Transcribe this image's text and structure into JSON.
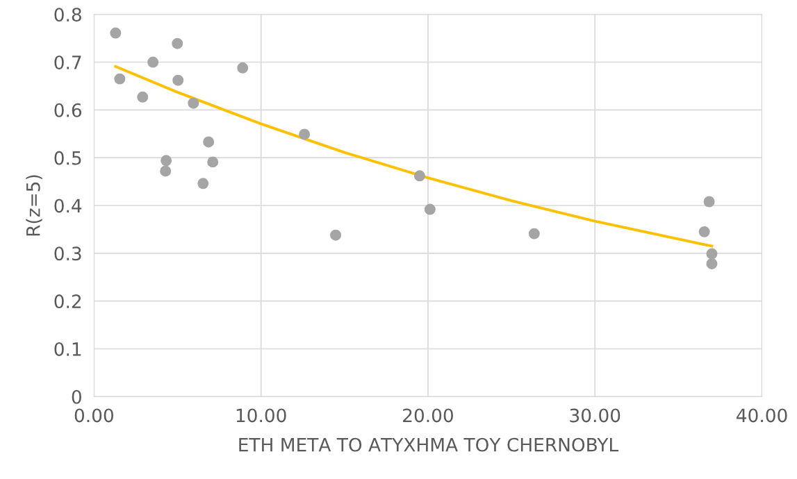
{
  "chart_data": {
    "type": "scatter",
    "xlabel": "ΕΤΗ ΜΕΤΑ ΤΟ ΑΤΥΧΗΜΑ ΤΟΥ CHERNOBYL",
    "ylabel": "R(z=5)",
    "xlim": [
      0,
      40
    ],
    "ylim": [
      0,
      0.8
    ],
    "xticks": [
      {
        "value": 0,
        "label": "0.00"
      },
      {
        "value": 10,
        "label": "10.00"
      },
      {
        "value": 20,
        "label": "20.00"
      },
      {
        "value": 30,
        "label": "30.00"
      },
      {
        "value": 40,
        "label": "40.00"
      }
    ],
    "yticks": [
      0,
      0.1,
      0.2,
      0.3,
      0.4,
      0.5,
      0.6,
      0.7,
      0.8
    ],
    "grid": true,
    "series": [
      {
        "marker": "circle",
        "color": "#a5a5a5",
        "x": [
          1.29,
          1.54,
          3.53,
          2.91,
          4.99,
          5.03,
          5.95,
          8.9,
          4.32,
          4.28,
          6.86,
          7.11,
          6.53,
          12.6,
          14.47,
          19.5,
          20.12,
          26.36,
          36.84,
          36.55,
          37.0,
          37.0
        ],
        "values": [
          0.761,
          0.665,
          0.7,
          0.627,
          0.739,
          0.662,
          0.614,
          0.688,
          0.494,
          0.472,
          0.533,
          0.491,
          0.446,
          0.549,
          0.338,
          0.462,
          0.392,
          0.341,
          0.408,
          0.345,
          0.299,
          0.278
        ]
      },
      {
        "type": "line",
        "color": "#ffc000",
        "x": [
          1.29,
          5,
          10,
          15,
          20,
          25,
          30,
          37
        ],
        "values": [
          0.691,
          0.637,
          0.571,
          0.511,
          0.458,
          0.41,
          0.367,
          0.315
        ]
      }
    ]
  }
}
